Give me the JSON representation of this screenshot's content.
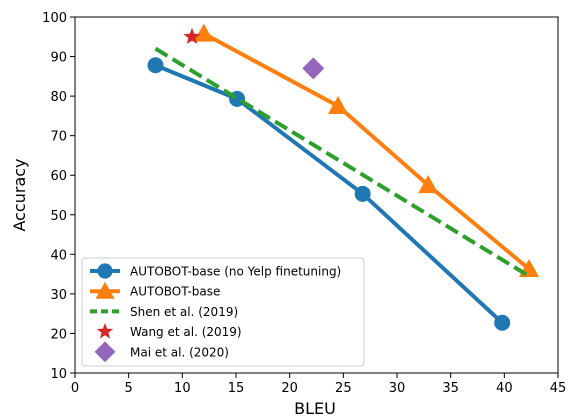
{
  "chart_data": {
    "type": "line",
    "title": "",
    "xlabel": "BLEU",
    "ylabel": "Accuracy",
    "xlim": [
      0,
      45
    ],
    "ylim": [
      10,
      100
    ],
    "xticks": [
      0,
      5,
      10,
      15,
      20,
      25,
      30,
      35,
      40,
      45
    ],
    "yticks": [
      10,
      20,
      30,
      40,
      50,
      60,
      70,
      80,
      90,
      100
    ],
    "grid": false,
    "legend_position": "bottom-left",
    "series": [
      {
        "name": "AUTOBOT-base (no Yelp finetuning)",
        "color": "#1f77b4",
        "marker": "circle",
        "line": "solid",
        "x": [
          7.5,
          15.1,
          26.8,
          39.8
        ],
        "y": [
          87.8,
          79.3,
          55.3,
          22.7
        ]
      },
      {
        "name": "AUTOBOT-base",
        "color": "#ff7f0e",
        "marker": "triangle",
        "line": "solid",
        "x": [
          12.0,
          24.5,
          32.9,
          42.3
        ],
        "y": [
          95.8,
          77.5,
          57.5,
          36.3
        ]
      },
      {
        "name": "Shen et al. (2019)",
        "color": "#2ca02c",
        "marker": "none",
        "line": "dashed",
        "x": [
          7.5,
          42.3
        ],
        "y": [
          92.0,
          34.5
        ]
      },
      {
        "name": "Wang et al. (2019)",
        "color": "#d62728",
        "marker": "star",
        "line": "none",
        "x": [
          10.9
        ],
        "y": [
          95.0
        ]
      },
      {
        "name": "Mai et al. (2020)",
        "color": "#9467bd",
        "marker": "diamond",
        "line": "none",
        "x": [
          22.2
        ],
        "y": [
          87.0
        ]
      }
    ]
  }
}
